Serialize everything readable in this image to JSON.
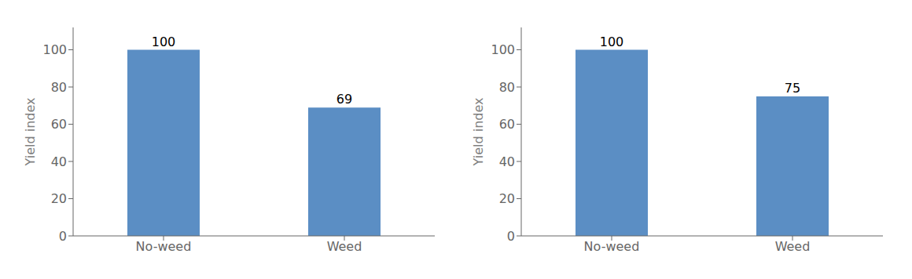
{
  "chart_data": [
    {
      "type": "bar",
      "categories": [
        "No-weed",
        "Weed"
      ],
      "values": [
        100,
        69
      ],
      "ylabel": "Yield index",
      "ylim": [
        0,
        112
      ],
      "yticks": [
        0,
        20,
        40,
        60,
        80,
        100
      ],
      "color": "#5b8ec4",
      "data_labels": true,
      "grid": false
    },
    {
      "type": "bar",
      "categories": [
        "No-weed",
        "Weed"
      ],
      "values": [
        100,
        75
      ],
      "ylabel": "Yield index",
      "ylim": [
        0,
        112
      ],
      "yticks": [
        0,
        20,
        40,
        60,
        80,
        100
      ],
      "color": "#5b8ec4",
      "data_labels": true,
      "grid": false
    }
  ]
}
